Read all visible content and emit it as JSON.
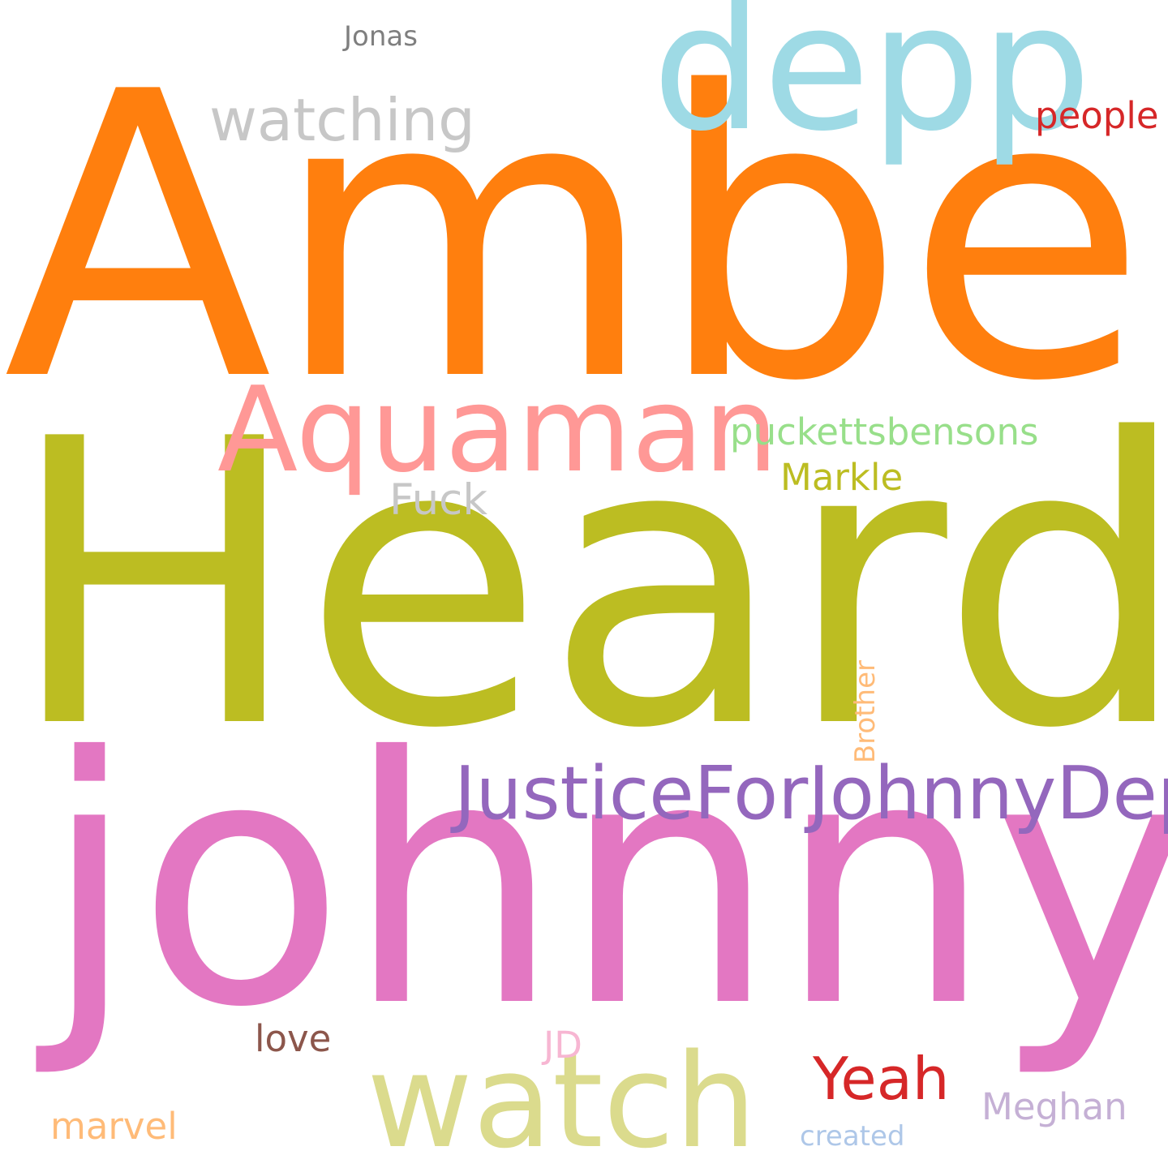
{
  "words": [
    {
      "key": "amber",
      "text": "Amber",
      "color": "#ff7f0e"
    },
    {
      "key": "heard",
      "text": "Heard",
      "color": "#bcbd22"
    },
    {
      "key": "johnny",
      "text": "johnny",
      "color": "#e377c2"
    },
    {
      "key": "depp",
      "text": "depp",
      "color": "#9edae5"
    },
    {
      "key": "aquaman",
      "text": "Aquaman",
      "color": "#ff9896"
    },
    {
      "key": "justicefor",
      "text": "JusticeForJohnnyDepp",
      "color": "#9467bd"
    },
    {
      "key": "watch",
      "text": "watch",
      "color": "#dbdb8d"
    },
    {
      "key": "watching",
      "text": "watching",
      "color": "#c7c7c7"
    },
    {
      "key": "yeah",
      "text": "Yeah",
      "color": "#d62728"
    },
    {
      "key": "puckettsbensons",
      "text": "puckettsbensons",
      "color": "#98df8a"
    },
    {
      "key": "fuck",
      "text": "Fuck",
      "color": "#c7c7c7"
    },
    {
      "key": "markle",
      "text": "Markle",
      "color": "#bcbd22"
    },
    {
      "key": "people",
      "text": "people",
      "color": "#d62728"
    },
    {
      "key": "meghan",
      "text": "Meghan",
      "color": "#c5b0d5"
    },
    {
      "key": "marvel",
      "text": "marvel",
      "color": "#ffbb78"
    },
    {
      "key": "love",
      "text": "love",
      "color": "#8c564b"
    },
    {
      "key": "jd",
      "text": "JD",
      "color": "#f7b6d2"
    },
    {
      "key": "brother",
      "text": "Brother",
      "color": "#ffbb78"
    },
    {
      "key": "jonas",
      "text": "Jonas",
      "color": "#7f7f7f"
    },
    {
      "key": "created",
      "text": "created",
      "color": "#aec7e8"
    }
  ]
}
